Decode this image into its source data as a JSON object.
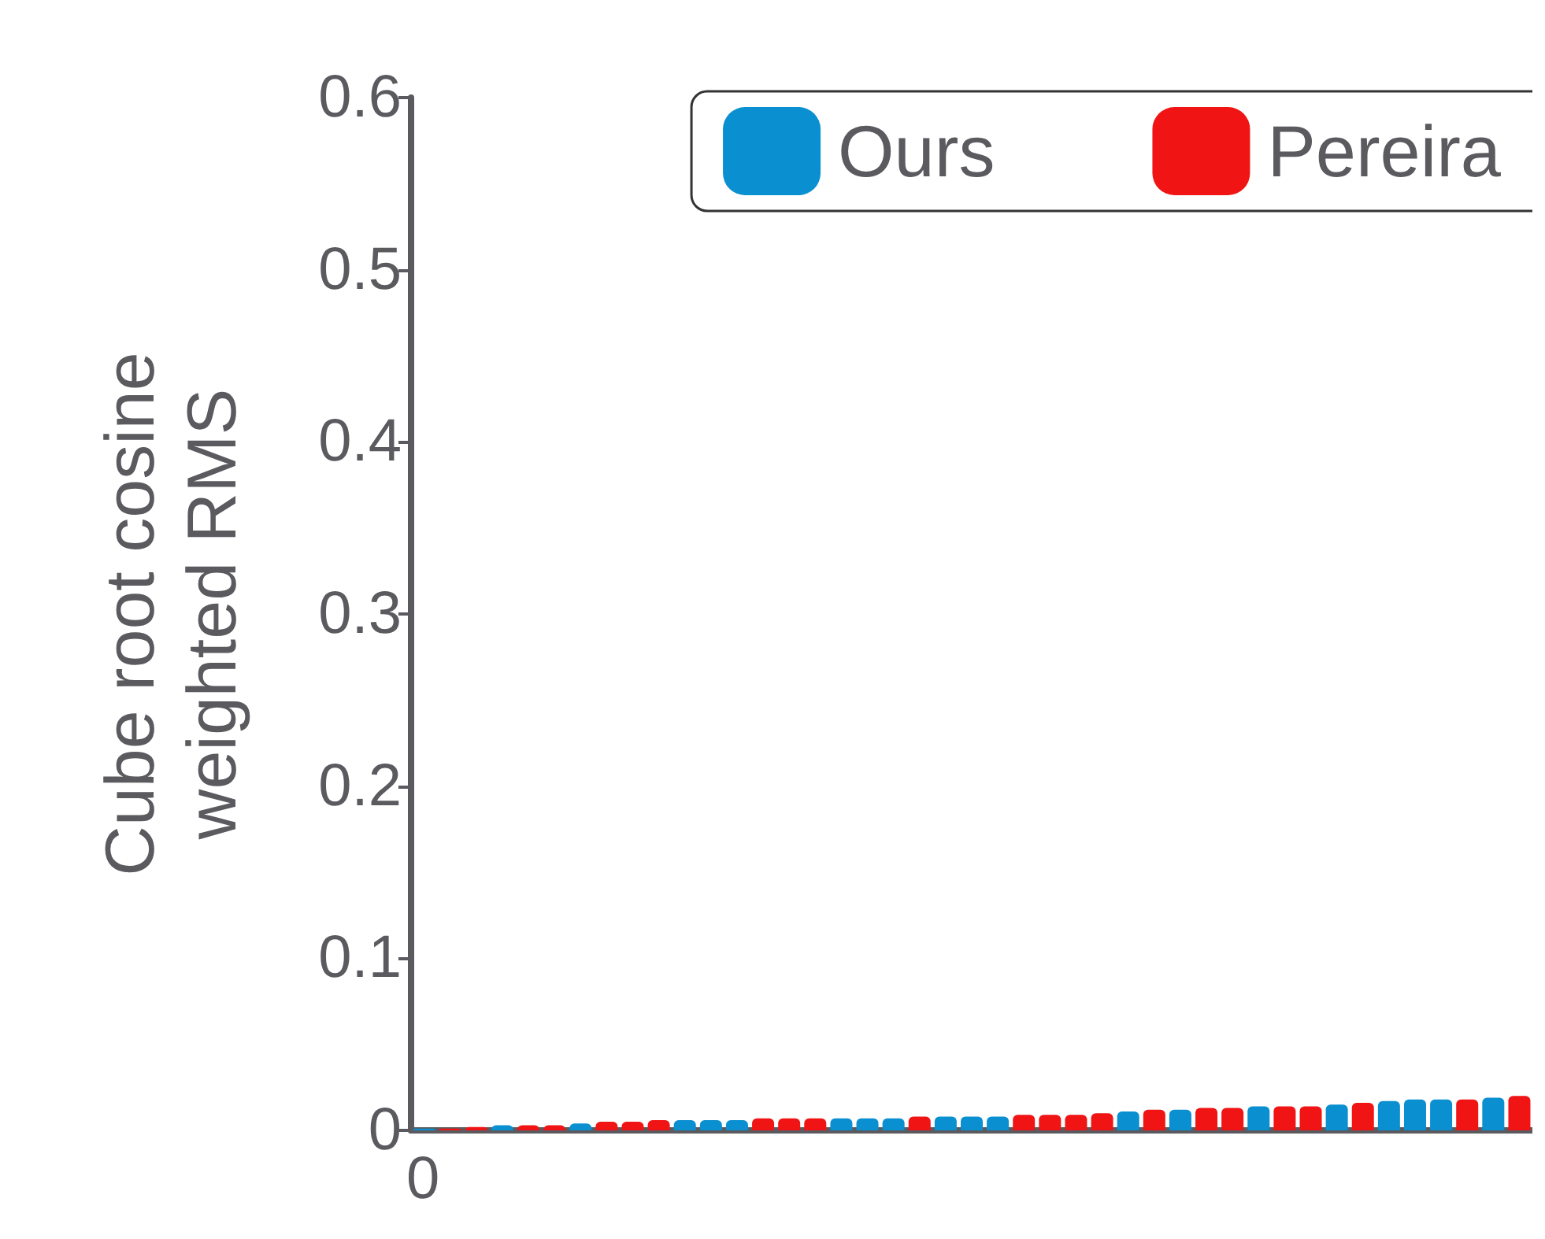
{
  "chart_data": {
    "type": "bar",
    "ylabel": "Cube root cosine weighted RMS",
    "annotations": [
      "0"
    ],
    "categories": [
      null,
      null,
      null,
      null,
      null,
      null,
      null,
      null,
      null,
      null,
      null,
      null,
      null,
      null,
      null,
      null,
      null,
      null,
      null,
      null,
      null,
      null,
      null,
      null,
      null,
      null,
      null,
      null,
      null,
      null,
      null,
      null,
      null,
      null,
      null,
      null,
      null,
      null,
      null,
      null,
      null,
      null,
      null
    ],
    "ylim": [
      0,
      0.6
    ],
    "yticks": [
      0,
      0.1,
      0.2,
      0.3,
      0.4,
      0.5,
      0.6
    ],
    "grid": false,
    "legend": "top right",
    "series": [
      {
        "name": "Ours",
        "color": "#0a8fd0",
        "values": [
          0.001,
          null,
          null,
          0.003,
          null,
          null,
          0.004,
          null,
          null,
          null,
          0.006,
          0.006,
          0.006,
          null,
          null,
          null,
          0.007,
          0.007,
          0.007,
          null,
          0.008,
          0.008,
          0.008,
          null,
          null,
          null,
          null,
          0.011,
          null,
          0.012,
          null,
          null,
          0.014,
          null,
          null,
          0.015,
          null,
          0.017,
          0.018,
          0.018,
          null,
          0.019,
          null
        ]
      },
      {
        "name": "Pereira",
        "color": "#f01414",
        "values": [
          null,
          0.001,
          0.002,
          null,
          0.003,
          0.003,
          null,
          0.005,
          0.005,
          0.006,
          null,
          null,
          null,
          0.007,
          0.007,
          0.007,
          null,
          null,
          null,
          0.008,
          null,
          null,
          null,
          0.009,
          0.009,
          0.009,
          0.01,
          null,
          0.012,
          null,
          0.013,
          0.013,
          null,
          0.014,
          0.014,
          null,
          0.016,
          null,
          null,
          null,
          0.018,
          null,
          0.02
        ]
      }
    ]
  }
}
